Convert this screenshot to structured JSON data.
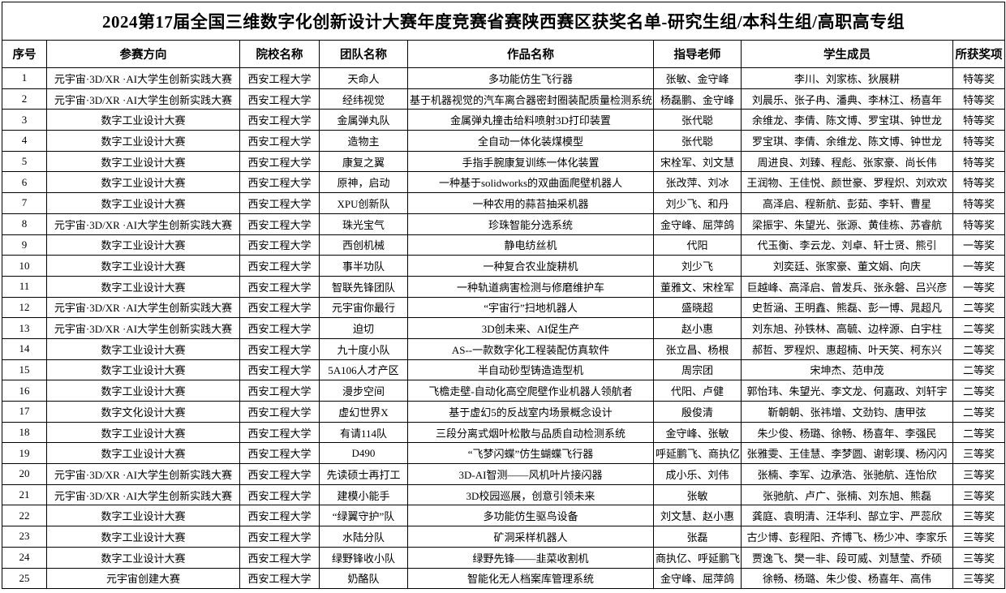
{
  "title": "2024第17届全国三维数字化创新设计大赛年度竞赛省赛陕西赛区获奖名单-研究生组/本科生组/高职高专组",
  "columns": [
    "序号",
    "参赛方向",
    "院校名称",
    "团队名称",
    "作品名称",
    "指导老师",
    "学生成员",
    "所获奖项"
  ],
  "rows": [
    {
      "no": "1",
      "direction": "元宇宙·3D/XR ·AI大学生创新实践大赛",
      "school": "西安工程大学",
      "team": "天命人",
      "work": "多功能仿生飞行器",
      "advisors": "张敏、金守峰",
      "students": "李川、刘家栋、狄展耕",
      "award": "特等奖"
    },
    {
      "no": "2",
      "direction": "元宇宙·3D/XR ·AI大学生创新实践大赛",
      "school": "西安工程大学",
      "team": "经纬视觉",
      "work": "基于机器视觉的汽车离合器密封圈装配质量检测系统",
      "advisors": "杨磊鹏、金守峰",
      "students": "刘晨乐、张子冉、潘典、李林江、杨喜年",
      "award": "特等奖"
    },
    {
      "no": "3",
      "direction": "数字工业设计大赛",
      "school": "西安工程大学",
      "team": "金属弹丸队",
      "work": "金属弹丸撞击给料喷射3D打印装置",
      "advisors": "张代聪",
      "students": "余维龙、李倩、陈文博、罗宝琪、钟世龙",
      "award": "特等奖"
    },
    {
      "no": "4",
      "direction": "数字工业设计大赛",
      "school": "西安工程大学",
      "team": "造物主",
      "work": "全自动一体化装煤模型",
      "advisors": "张代聪",
      "students": "罗宝琪、李倩、余维龙、陈文博、钟世龙",
      "award": "特等奖"
    },
    {
      "no": "5",
      "direction": "数字工业设计大赛",
      "school": "西安工程大学",
      "team": "康复之翼",
      "work": "手指手腕康复训练一体化装置",
      "advisors": "宋栓军、刘文慧",
      "students": "周进良、刘臻、程彪、张家豪、尚长伟",
      "award": "特等奖"
    },
    {
      "no": "6",
      "direction": "数字工业设计大赛",
      "school": "西安工程大学",
      "team": "原神，启动",
      "work": "一种基于solidworks的双曲面爬壁机器人",
      "advisors": "张改萍、刘冰",
      "students": "王润物、王佳悦、颜世豪、罗程炽、刘欢欢",
      "award": "特等奖"
    },
    {
      "no": "7",
      "direction": "数字工业设计大赛",
      "school": "西安工程大学",
      "team": "XPU创新队",
      "work": "一种农用的蒜苔抽采机器",
      "advisors": "刘少飞、和丹",
      "students": "高泽启、程新航、彭茹、李轩、曹星",
      "award": "特等奖"
    },
    {
      "no": "8",
      "direction": "元宇宙·3D/XR ·AI大学生创新实践大赛",
      "school": "西安工程大学",
      "team": "珠光宝气",
      "work": "珍珠智能分选系统",
      "advisors": "金守峰、屈萍鸽",
      "students": "梁振宇、朱望光、张源、黄佳栋、苏睿航",
      "award": "特等奖"
    },
    {
      "no": "9",
      "direction": "数字工业设计大赛",
      "school": "西安工程大学",
      "team": "西创机械",
      "work": "静电纺丝机",
      "advisors": "代阳",
      "students": "代玉衡、李云龙、刘卓、轩士贤、熊引",
      "award": "一等奖"
    },
    {
      "no": "10",
      "direction": "数字工业设计大赛",
      "school": "西安工程大学",
      "team": "事半功队",
      "work": "一种复合农业旋耕机",
      "advisors": "刘少飞",
      "students": "刘奕廷、张家豪、董文娟、向庆",
      "award": "一等奖"
    },
    {
      "no": "11",
      "direction": "数字工业设计大赛",
      "school": "西安工程大学",
      "team": "智联先锋团队",
      "work": "一种轨道病害检测与修磨维护车",
      "advisors": "董雅文、宋栓军",
      "students": "巨越峰、高泽启、曾发兵、张永磐、吕兴彦",
      "award": "一等奖"
    },
    {
      "no": "12",
      "direction": "元宇宙·3D/XR ·AI大学生创新实践大赛",
      "school": "西安工程大学",
      "team": "元宇宙你最行",
      "work": "“宇宙行”扫地机器人",
      "advisors": "盛晓超",
      "students": "史哲涵、王明鑫、熊磊、彭一博、晁超凡",
      "award": "二等奖"
    },
    {
      "no": "13",
      "direction": "元宇宙·3D/XR ·AI大学生创新实践大赛",
      "school": "西安工程大学",
      "team": "迫切",
      "work": "3D创未来、AI促生产",
      "advisors": "赵小惠",
      "students": "刘东旭、孙铁林、高毓、边梓源、白宇柱",
      "award": "二等奖"
    },
    {
      "no": "14",
      "direction": "数字工业设计大赛",
      "school": "西安工程大学",
      "team": "九十度小队",
      "work": "AS--一款数字化工程装配仿真软件",
      "advisors": "张立昌、杨根",
      "students": "郝哲、罗程炽、惠超楠、叶天笑、柯东兴",
      "award": "二等奖"
    },
    {
      "no": "15",
      "direction": "数字工业设计大赛",
      "school": "西安工程大学",
      "team": "5A106人才产区",
      "work": "半自动砂型铸造造型机",
      "advisors": "周宗团",
      "students": "宋坤杰、范申茂",
      "award": "二等奖"
    },
    {
      "no": "16",
      "direction": "数字工业设计大赛",
      "school": "西安工程大学",
      "team": "漫步空间",
      "work": "飞檐走壁-自动化高空爬壁作业机器人领航者",
      "advisors": "代阳、卢健",
      "students": "郭怡玮、朱望光、李文龙、何嘉政、刘轩宇",
      "award": "二等奖"
    },
    {
      "no": "17",
      "direction": "数字文化设计大赛",
      "school": "西安工程大学",
      "team": "虚幻世界X",
      "work": "基于虚幻5的反战室内场景概念设计",
      "advisors": "殷俊清",
      "students": "靳朝朝、张祎增、文劲钧、唐甲弦",
      "award": "二等奖"
    },
    {
      "no": "18",
      "direction": "数字工业设计大赛",
      "school": "西安工程大学",
      "team": "有请114队",
      "work": "三段分离式烟叶松散与品质自动检测系统",
      "advisors": "金守峰、张敏",
      "students": "朱少俊、杨璐、徐畅、杨喜年、李强民",
      "award": "二等奖"
    },
    {
      "no": "19",
      "direction": "数字工业设计大赛",
      "school": "西安工程大学",
      "team": "D490",
      "work": "“飞梦闪蝶”仿生蝴蝶飞行器",
      "advisors": "呼延鹏飞、商执亿",
      "students": "张雅雯、王佳慧、李梦圆、谢彰璞、杨闪闪",
      "award": "三等奖"
    },
    {
      "no": "20",
      "direction": "元宇宙·3D/XR ·AI大学生创新实践大赛",
      "school": "西安工程大学",
      "team": "先读硕士再打工",
      "work": "3D-AI智测——风机叶片接闪器",
      "advisors": "成小乐、刘伟",
      "students": "张楠、李军、边承浩、张驰航、连怡欣",
      "award": "三等奖"
    },
    {
      "no": "21",
      "direction": "元宇宙·3D/XR ·AI大学生创新实践大赛",
      "school": "西安工程大学",
      "team": "建模小能手",
      "work": "3D校园巡展，创意引领未来",
      "advisors": "张敏",
      "students": "张驰航、卢广、张楠、刘东旭、熊磊",
      "award": "三等奖"
    },
    {
      "no": "22",
      "direction": "数字工业设计大赛",
      "school": "西安工程大学",
      "team": "“绿翼守护”队",
      "work": "多功能仿生驱鸟设备",
      "advisors": "刘文慧、赵小惠",
      "students": "龚庭、袁明清、汪华利、郜立宇、严蕊欣",
      "award": "三等奖"
    },
    {
      "no": "23",
      "direction": "数字工业设计大赛",
      "school": "西安工程大学",
      "team": "水陆分队",
      "work": "矿洞采样机器人",
      "advisors": "张磊",
      "students": "古少博、彭程阳、齐博飞、杨少冲、李家乐",
      "award": "三等奖"
    },
    {
      "no": "24",
      "direction": "数字工业设计大赛",
      "school": "西安工程大学",
      "team": "绿野锋收小队",
      "work": "绿野先锋——韭菜收割机",
      "advisors": "商执亿、呼延鹏飞",
      "students": "贾逸飞、樊一非、段可威、刘慧莹、乔硕",
      "award": "三等奖"
    },
    {
      "no": "25",
      "direction": "元宇宙创建大赛",
      "school": "西安工程大学",
      "team": "奶酪队",
      "work": "智能化无人档案库管理系统",
      "advisors": "金守峰、屈萍鸽",
      "students": "徐畅、杨璐、朱少俊、杨喜年、高伟",
      "award": "三等奖"
    }
  ]
}
